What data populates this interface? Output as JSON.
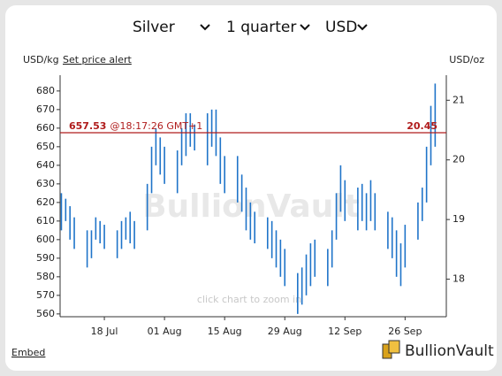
{
  "controls": {
    "metal": "Silver",
    "period": "1 quarter",
    "currency": "USD"
  },
  "header": {
    "left_unit": "USD/kg",
    "alert_link": "Set price alert",
    "right_unit": "USD/oz"
  },
  "chart_data": {
    "type": "high_low",
    "x": [
      189,
      190,
      191,
      192,
      195,
      196,
      197,
      198,
      199,
      202,
      203,
      204,
      205,
      206,
      209,
      210,
      211,
      212,
      213,
      216,
      217,
      218,
      219,
      220,
      223,
      224,
      225,
      226,
      227,
      230,
      231,
      232,
      233,
      234,
      237,
      238,
      239,
      240,
      241,
      244,
      245,
      246,
      247,
      248,
      251,
      252,
      253,
      254,
      255,
      258,
      259,
      260,
      261,
      262,
      265,
      266,
      267,
      268,
      269,
      272,
      273,
      274,
      275,
      276
    ],
    "series": [
      {
        "color": "#1f74c9",
        "low": [
          605,
          610,
          600,
          595,
          585,
          590,
          600,
          598,
          595,
          590,
          595,
          600,
          598,
          595,
          605,
          625,
          640,
          635,
          630,
          625,
          640,
          645,
          650,
          648,
          640,
          650,
          645,
          630,
          625,
          620,
          615,
          605,
          600,
          598,
          595,
          590,
          585,
          580,
          575,
          560,
          565,
          570,
          575,
          580,
          575,
          585,
          600,
          615,
          610,
          605,
          610,
          605,
          610,
          605,
          595,
          590,
          580,
          575,
          585,
          600,
          610,
          620,
          640,
          650
        ],
        "high": [
          625,
          622,
          618,
          612,
          605,
          605,
          612,
          610,
          608,
          605,
          610,
          612,
          615,
          610,
          630,
          650,
          660,
          655,
          650,
          648,
          660,
          668,
          668,
          662,
          668,
          670,
          670,
          655,
          645,
          645,
          635,
          628,
          620,
          615,
          612,
          610,
          605,
          600,
          595,
          582,
          585,
          592,
          598,
          600,
          595,
          605,
          625,
          640,
          632,
          628,
          630,
          625,
          632,
          625,
          615,
          612,
          605,
          598,
          608,
          620,
          628,
          650,
          672,
          684
        ]
      }
    ],
    "xlim": [
      188.7,
      278.6
    ],
    "xticks": [
      {
        "value": 199,
        "label": "18 Jul"
      },
      {
        "value": 213,
        "label": "01 Aug"
      },
      {
        "value": 227,
        "label": "15 Aug"
      },
      {
        "value": 241,
        "label": "29 Aug"
      },
      {
        "value": 255,
        "label": "12 Sep"
      },
      {
        "value": 269,
        "label": "26 Sep"
      }
    ],
    "ylim": [
      558.5,
      688.5
    ],
    "yticks": [
      560,
      570,
      580,
      590,
      600,
      610,
      620,
      630,
      640,
      650,
      660,
      670,
      680
    ],
    "y2lim": [
      17.37,
      21.42
    ],
    "y2ticks": [
      18,
      19,
      20,
      21
    ],
    "current_price": {
      "value": 657.53,
      "time": "@18:17:26 GMT+1",
      "value_oz": 20.45,
      "color": "#b01c1c"
    },
    "watermark": "BullionVault",
    "hint": "click chart to zoom in"
  },
  "footer": {
    "embed": "Embed",
    "logo": "BullionVault"
  }
}
